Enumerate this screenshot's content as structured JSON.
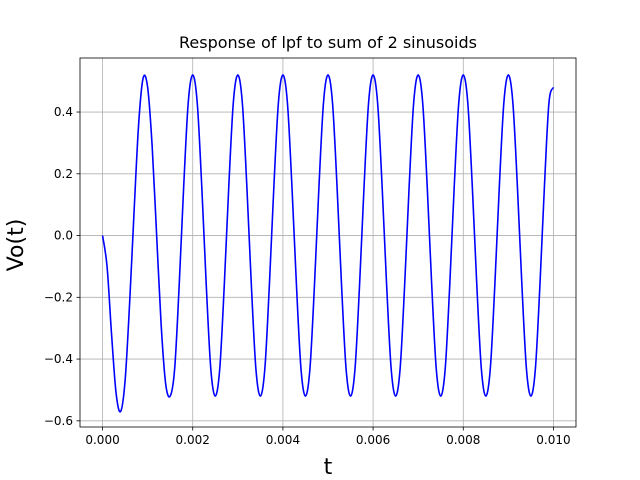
{
  "chart_data": {
    "type": "line",
    "title": "Response of lpf to sum of 2 sinusoids",
    "xlabel": "t",
    "ylabel": "Vo(t)",
    "xlim": [
      -0.0005,
      0.0105
    ],
    "ylim": [
      -0.62,
      0.575
    ],
    "xticks": [
      0.0,
      0.002,
      0.004,
      0.006,
      0.008,
      0.01
    ],
    "xtick_labels": [
      "0.000",
      "0.002",
      "0.004",
      "0.006",
      "0.008",
      "0.010"
    ],
    "yticks": [
      -0.6,
      -0.4,
      -0.2,
      0.0,
      0.2,
      0.4
    ],
    "ytick_labels": [
      "−0.6",
      "−0.4",
      "−0.2",
      "0.0",
      "0.2",
      "0.4"
    ],
    "grid": true,
    "series": [
      {
        "color": "#0000ff",
        "x": [
          0.0,
          0.0001,
          0.0002,
          0.0003,
          0.0004,
          0.0005,
          0.0006,
          0.0007,
          0.0008,
          0.0009,
          0.001,
          0.0011,
          0.0012,
          0.0013,
          0.0014,
          0.0015,
          0.0016,
          0.0017,
          0.0018,
          0.0019,
          0.002,
          0.0021,
          0.0022,
          0.0023,
          0.0024,
          0.0025,
          0.0026,
          0.0027,
          0.0028,
          0.0029,
          0.003,
          0.0031,
          0.0032,
          0.0033,
          0.0034,
          0.0035,
          0.0036,
          0.0037,
          0.0038,
          0.0039,
          0.004,
          0.0041,
          0.0042,
          0.0043,
          0.0044,
          0.0045,
          0.0046,
          0.0047,
          0.0048,
          0.0049,
          0.005,
          0.0051,
          0.0052,
          0.0053,
          0.0054,
          0.0055,
          0.0056,
          0.0057,
          0.0058,
          0.0059,
          0.006,
          0.0061,
          0.0062,
          0.0063,
          0.0064,
          0.0065,
          0.0066,
          0.0067,
          0.0068,
          0.0069,
          0.007,
          0.0071,
          0.0072,
          0.0073,
          0.0074,
          0.0075,
          0.0076,
          0.0077,
          0.0078,
          0.0079,
          0.008,
          0.0081,
          0.0082,
          0.0083,
          0.0084,
          0.0085,
          0.0086,
          0.0087,
          0.0088,
          0.0089,
          0.009,
          0.0091,
          0.0092,
          0.0093,
          0.0094,
          0.0095,
          0.0096,
          0.0097,
          0.0098,
          0.0099,
          0.01
        ],
        "y": [
          0.0,
          -0.1,
          -0.32,
          -0.51,
          -0.57,
          -0.47,
          -0.22,
          0.08,
          0.36,
          0.51,
          0.48,
          0.29,
          0.0,
          -0.29,
          -0.48,
          -0.52,
          -0.43,
          -0.16,
          0.16,
          0.43,
          0.52,
          0.43,
          0.16,
          -0.16,
          -0.43,
          -0.52,
          -0.43,
          -0.16,
          0.16,
          0.43,
          0.52,
          0.43,
          0.16,
          -0.16,
          -0.43,
          -0.52,
          -0.43,
          -0.16,
          0.16,
          0.43,
          0.52,
          0.43,
          0.16,
          -0.16,
          -0.43,
          -0.52,
          -0.43,
          -0.16,
          0.16,
          0.43,
          0.52,
          0.43,
          0.16,
          -0.16,
          -0.43,
          -0.52,
          -0.43,
          -0.16,
          0.16,
          0.43,
          0.52,
          0.43,
          0.16,
          -0.16,
          -0.43,
          -0.52,
          -0.43,
          -0.16,
          0.16,
          0.43,
          0.52,
          0.43,
          0.16,
          -0.16,
          -0.43,
          -0.52,
          -0.43,
          -0.16,
          0.16,
          0.43,
          0.52,
          0.43,
          0.16,
          -0.16,
          -0.43,
          -0.52,
          -0.43,
          -0.16,
          0.16,
          0.43,
          0.52,
          0.43,
          0.16,
          -0.16,
          -0.43,
          -0.52,
          -0.43,
          -0.16,
          0.16,
          0.43,
          0.48
        ]
      }
    ]
  }
}
